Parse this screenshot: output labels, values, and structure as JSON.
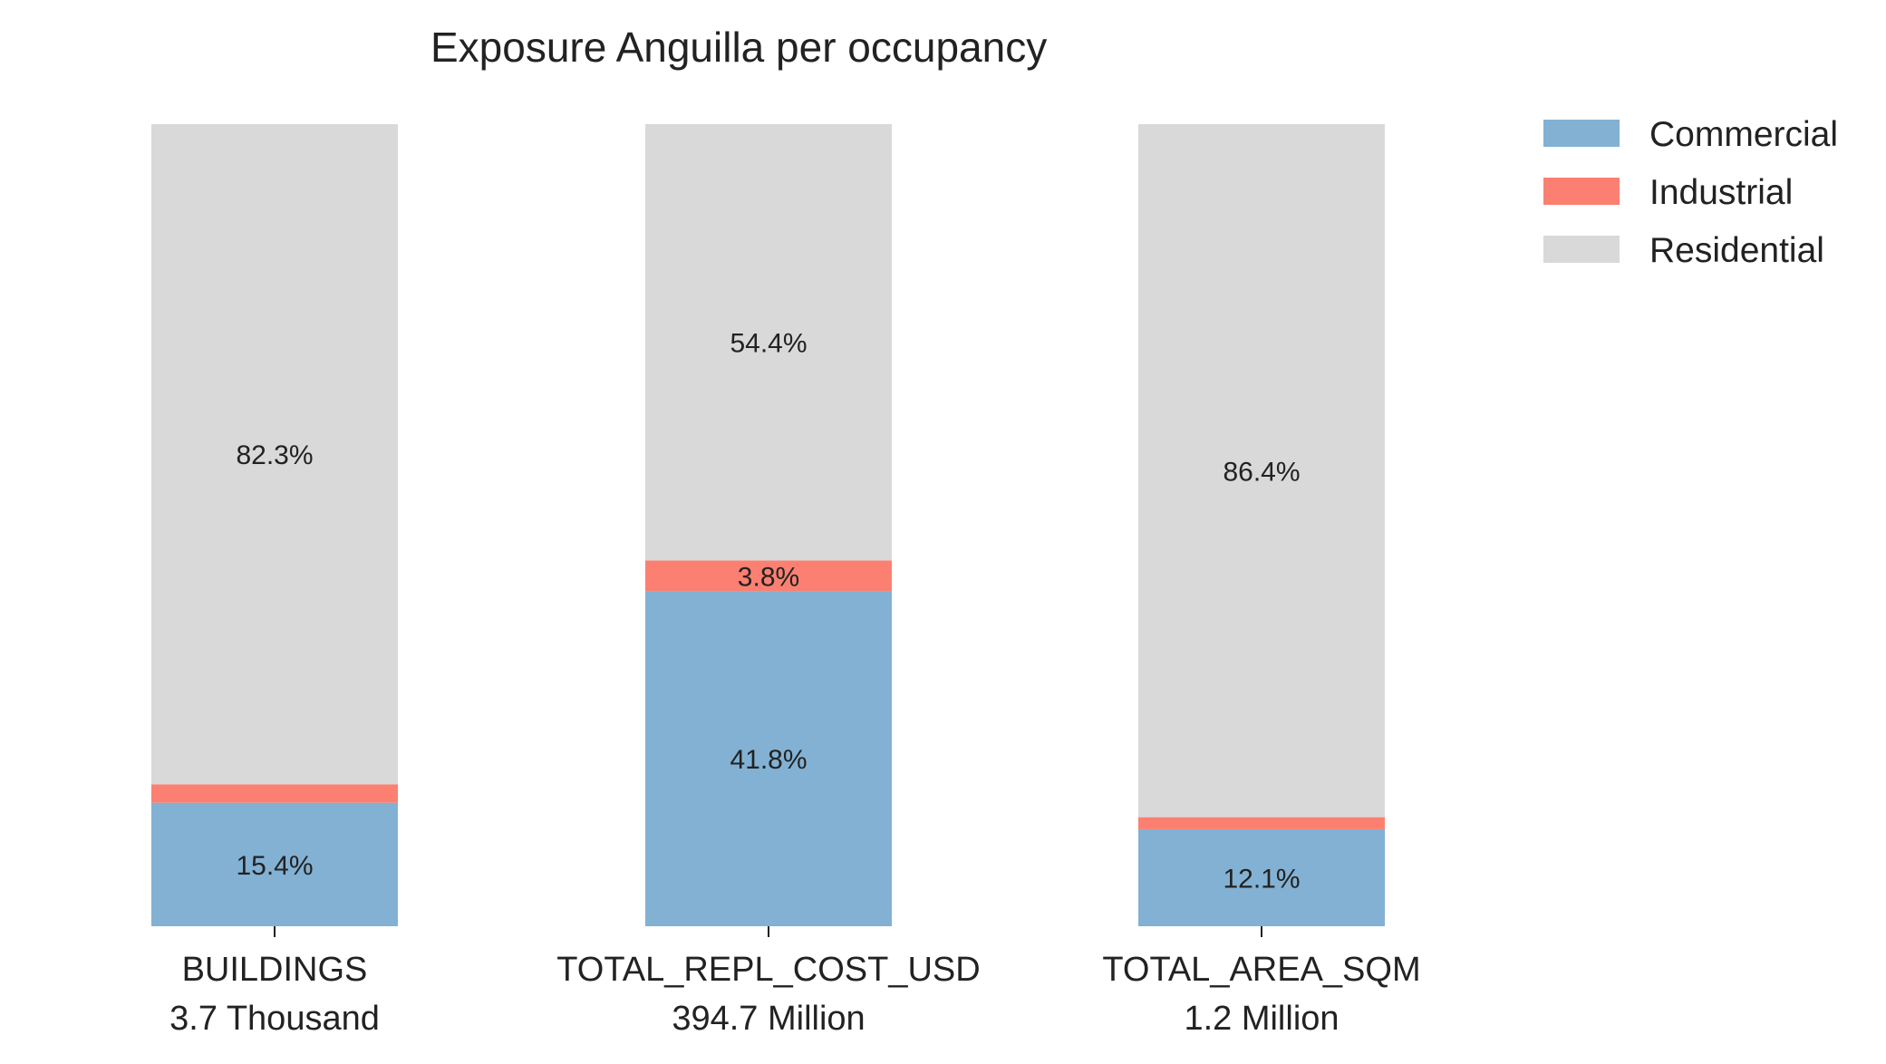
{
  "chart_data": {
    "type": "bar",
    "stacked": true,
    "normalized": true,
    "title": "Exposure Anguilla per occupancy",
    "xlabel": "",
    "ylabel": "",
    "ylim": [
      0,
      100
    ],
    "grid": false,
    "legend_position": "top-right",
    "categories": [
      {
        "name": "BUILDINGS",
        "total": "3.7 Thousand"
      },
      {
        "name": "TOTAL_REPL_COST_USD",
        "total": "394.7 Million"
      },
      {
        "name": "TOTAL_AREA_SQM",
        "total": "1.2 Million"
      }
    ],
    "series": [
      {
        "name": "Commercial",
        "color": "#82b1d3",
        "values": [
          15.4,
          41.8,
          12.1
        ],
        "labels": [
          "15.4%",
          "41.8%",
          "12.1%"
        ]
      },
      {
        "name": "Industrial",
        "color": "#fb8072",
        "values": [
          2.3,
          3.8,
          1.5
        ],
        "labels": [
          "",
          "3.8%",
          ""
        ]
      },
      {
        "name": "Residential",
        "color": "#d9d9d9",
        "values": [
          82.3,
          54.4,
          86.4
        ],
        "labels": [
          "82.3%",
          "54.4%",
          "86.4%"
        ]
      }
    ]
  }
}
